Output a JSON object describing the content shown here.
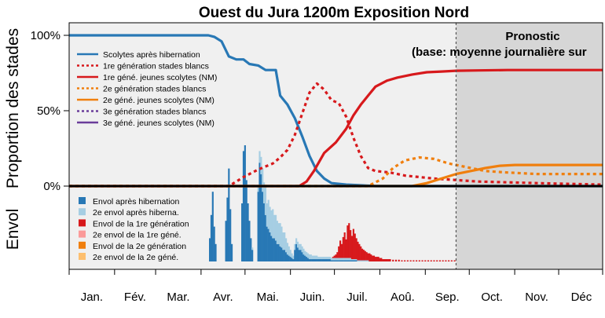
{
  "chart_data": {
    "type": "line",
    "title": "Ouest du Jura 1200m Exposition Nord",
    "ylabel_top": "Proportion des stades",
    "ylabel_bottom": "Envol",
    "yticks": [
      "100%",
      "50%",
      "0%"
    ],
    "ylim": [
      0,
      1.05
    ],
    "months": [
      "Jan.",
      "Fév.",
      "Mar.",
      "Avr.",
      "Mai.",
      "Juin.",
      "Juil.",
      "Aoû.",
      "Sep.",
      "Oct.",
      "Nov.",
      "Déc"
    ],
    "forecast": {
      "start_day": 265,
      "label_line1": "Pronostic",
      "label_line2": "(base: moyenne journalière sur"
    },
    "colors": {
      "panel_bg": "#f0f0f0",
      "forecast_bg": "#d6d6d6",
      "blue": "#2878b5",
      "red": "#d7191c",
      "orange": "#f07f0e",
      "purple": "#6a3d9a",
      "light_blue": "#a6cee3",
      "light_red": "#fb9a99",
      "light_orange": "#fdbf6f"
    },
    "legend_lines": [
      {
        "name": "Scolytes après hibernation",
        "color": "#2878b5",
        "dash": "solid"
      },
      {
        "name": "1re génération stades blancs",
        "color": "#d7191c",
        "dash": "dotted"
      },
      {
        "name": "1re géné. jeunes scolytes (NM)",
        "color": "#d7191c",
        "dash": "solid"
      },
      {
        "name": "2e génération stades blancs",
        "color": "#f07f0e",
        "dash": "dotted"
      },
      {
        "name": "2e géné. jeunes scolytes (NM)",
        "color": "#f07f0e",
        "dash": "solid"
      },
      {
        "name": "3e génération stades blancs",
        "color": "#6a3d9a",
        "dash": "dotted"
      },
      {
        "name": "3e géné. jeunes scolytes (NM)",
        "color": "#6a3d9a",
        "dash": "solid"
      }
    ],
    "legend_bars": [
      {
        "name": "Envol après hibernation",
        "color": "#2878b5"
      },
      {
        "name": "2e envol après hiberna.",
        "color": "#a6cee3"
      },
      {
        "name": "Envol de la 1re génération",
        "color": "#d7191c"
      },
      {
        "name": "2e envol de la 1re géné.",
        "color": "#fb9a99"
      },
      {
        "name": "Envol de la 2e génération",
        "color": "#f07f0e"
      },
      {
        "name": "2e envol de la 2e géné.",
        "color": "#fdbf6f"
      }
    ],
    "series": [
      {
        "name": "Scolytes après hibernation",
        "color": "#2878b5",
        "dash": "solid",
        "x": [
          1,
          96,
          100,
          105,
          110,
          115,
          120,
          124,
          130,
          135,
          142,
          145,
          150,
          155,
          160,
          165,
          170,
          175,
          180,
          190,
          200,
          210,
          365
        ],
        "y": [
          1.0,
          1.0,
          0.99,
          0.96,
          0.86,
          0.84,
          0.84,
          0.81,
          0.8,
          0.77,
          0.77,
          0.6,
          0.54,
          0.45,
          0.33,
          0.2,
          0.1,
          0.05,
          0.02,
          0.01,
          0.005,
          0.0,
          0.0
        ]
      },
      {
        "name": "1re génération stades blancs",
        "color": "#d7191c",
        "dash": "dotted",
        "x": [
          1,
          110,
          120,
          130,
          140,
          145,
          150,
          155,
          160,
          165,
          170,
          175,
          180,
          185,
          190,
          195,
          200,
          205,
          210,
          220,
          230,
          240,
          250,
          265,
          280,
          300,
          320,
          340,
          365
        ],
        "y": [
          0.0,
          0.0,
          0.06,
          0.11,
          0.15,
          0.19,
          0.24,
          0.34,
          0.48,
          0.62,
          0.68,
          0.64,
          0.57,
          0.55,
          0.46,
          0.32,
          0.2,
          0.12,
          0.1,
          0.09,
          0.07,
          0.06,
          0.05,
          0.04,
          0.03,
          0.025,
          0.02,
          0.015,
          0.01
        ]
      },
      {
        "name": "1re géné. jeunes scolytes (NM)",
        "color": "#d7191c",
        "dash": "solid",
        "x": [
          1,
          158,
          163,
          168,
          175,
          183,
          190,
          195,
          200,
          205,
          210,
          218,
          225,
          235,
          245,
          255,
          265,
          280,
          300,
          330,
          365
        ],
        "y": [
          0.0,
          0.0,
          0.03,
          0.1,
          0.22,
          0.29,
          0.38,
          0.47,
          0.54,
          0.6,
          0.66,
          0.7,
          0.72,
          0.74,
          0.755,
          0.76,
          0.765,
          0.767,
          0.77,
          0.77,
          0.77
        ]
      },
      {
        "name": "2e génération stades blancs",
        "color": "#f07f0e",
        "dash": "dotted",
        "x": [
          1,
          205,
          215,
          222,
          230,
          240,
          250,
          260,
          270,
          285,
          300,
          320,
          340,
          365
        ],
        "y": [
          0.0,
          0.0,
          0.05,
          0.12,
          0.17,
          0.19,
          0.18,
          0.15,
          0.13,
          0.1,
          0.09,
          0.08,
          0.08,
          0.08
        ]
      },
      {
        "name": "2e géné. jeunes scolytes (NM)",
        "color": "#f07f0e",
        "dash": "solid",
        "x": [
          1,
          235,
          245,
          255,
          265,
          275,
          285,
          295,
          305,
          320,
          340,
          365
        ],
        "y": [
          0.0,
          0.0,
          0.02,
          0.05,
          0.08,
          0.1,
          0.12,
          0.135,
          0.14,
          0.14,
          0.14,
          0.14
        ]
      }
    ],
    "flight_bars": [
      {
        "x": 97,
        "blue": 0.2,
        "light_blue": 0.0,
        "red": 0.0
      },
      {
        "x": 98,
        "blue": 0.4,
        "light_blue": 0.0,
        "red": 0.0
      },
      {
        "x": 99,
        "blue": 0.6,
        "light_blue": 0.0,
        "red": 0.0
      },
      {
        "x": 100,
        "blue": 0.3,
        "light_blue": 0.0,
        "red": 0.0
      },
      {
        "x": 101,
        "blue": 0.15,
        "light_blue": 0.0,
        "red": 0.0
      },
      {
        "x": 108,
        "blue": 0.35,
        "light_blue": 0.0,
        "red": 0.0
      },
      {
        "x": 109,
        "blue": 0.55,
        "light_blue": 0.0,
        "red": 0.0
      },
      {
        "x": 110,
        "blue": 0.8,
        "light_blue": 0.0,
        "red": 0.0
      },
      {
        "x": 111,
        "blue": 0.45,
        "light_blue": 0.0,
        "red": 0.0
      },
      {
        "x": 112,
        "blue": 0.15,
        "light_blue": 0.0,
        "red": 0.0
      },
      {
        "x": 119,
        "blue": 0.5,
        "light_blue": 0.0,
        "red": 0.0
      },
      {
        "x": 120,
        "blue": 0.95,
        "light_blue": 0.0,
        "red": 0.0
      },
      {
        "x": 121,
        "blue": 1.0,
        "light_blue": 0.0,
        "red": 0.0
      },
      {
        "x": 122,
        "blue": 0.7,
        "light_blue": 0.0,
        "red": 0.0
      },
      {
        "x": 123,
        "blue": 0.5,
        "light_blue": 0.0,
        "red": 0.0
      },
      {
        "x": 124,
        "blue": 0.35,
        "light_blue": 0.0,
        "red": 0.0
      },
      {
        "x": 125,
        "blue": 0.2,
        "light_blue": 0.0,
        "red": 0.0
      },
      {
        "x": 126,
        "blue": 0.1,
        "light_blue": 0.02,
        "red": 0.0
      },
      {
        "x": 130,
        "blue": 0.6,
        "light_blue": 0.05,
        "red": 0.0
      },
      {
        "x": 131,
        "blue": 0.85,
        "light_blue": 0.1,
        "red": 0.0
      },
      {
        "x": 132,
        "blue": 0.75,
        "light_blue": 0.15,
        "red": 0.0
      },
      {
        "x": 133,
        "blue": 0.6,
        "light_blue": 0.2,
        "red": 0.0
      },
      {
        "x": 134,
        "blue": 0.5,
        "light_blue": 0.18,
        "red": 0.0
      },
      {
        "x": 135,
        "blue": 0.4,
        "light_blue": 0.25,
        "red": 0.0
      },
      {
        "x": 136,
        "blue": 0.3,
        "light_blue": 0.2,
        "red": 0.0
      },
      {
        "x": 137,
        "blue": 0.28,
        "light_blue": 0.25,
        "red": 0.0
      },
      {
        "x": 138,
        "blue": 0.25,
        "light_blue": 0.22,
        "red": 0.0
      },
      {
        "x": 139,
        "blue": 0.22,
        "light_blue": 0.22,
        "red": 0.0
      },
      {
        "x": 140,
        "blue": 0.2,
        "light_blue": 0.25,
        "red": 0.0
      },
      {
        "x": 141,
        "blue": 0.2,
        "light_blue": 0.2,
        "red": 0.0
      },
      {
        "x": 142,
        "blue": 0.18,
        "light_blue": 0.22,
        "red": 0.0
      },
      {
        "x": 143,
        "blue": 0.15,
        "light_blue": 0.2,
        "red": 0.0
      },
      {
        "x": 144,
        "blue": 0.15,
        "light_blue": 0.18,
        "red": 0.0
      },
      {
        "x": 145,
        "blue": 0.13,
        "light_blue": 0.2,
        "red": 0.0
      },
      {
        "x": 146,
        "blue": 0.12,
        "light_blue": 0.18,
        "red": 0.0
      },
      {
        "x": 147,
        "blue": 0.1,
        "light_blue": 0.15,
        "red": 0.0
      },
      {
        "x": 148,
        "blue": 0.1,
        "light_blue": 0.15,
        "red": 0.0
      },
      {
        "x": 149,
        "blue": 0.08,
        "light_blue": 0.12,
        "red": 0.0
      },
      {
        "x": 150,
        "blue": 0.06,
        "light_blue": 0.1,
        "red": 0.0
      },
      {
        "x": 151,
        "blue": 0.05,
        "light_blue": 0.08,
        "red": 0.0
      },
      {
        "x": 152,
        "blue": 0.04,
        "light_blue": 0.06,
        "red": 0.0
      },
      {
        "x": 153,
        "blue": 0.03,
        "light_blue": 0.04,
        "red": 0.0
      },
      {
        "x": 154,
        "blue": 0.02,
        "light_blue": 0.03,
        "red": 0.0
      },
      {
        "x": 155,
        "blue": 0.1,
        "light_blue": 0.05,
        "red": 0.0
      },
      {
        "x": 156,
        "blue": 0.15,
        "light_blue": 0.05,
        "red": 0.0
      },
      {
        "x": 157,
        "blue": 0.12,
        "light_blue": 0.05,
        "red": 0.0
      },
      {
        "x": 158,
        "blue": 0.1,
        "light_blue": 0.05,
        "red": 0.0
      },
      {
        "x": 159,
        "blue": 0.1,
        "light_blue": 0.05,
        "red": 0.0
      },
      {
        "x": 160,
        "blue": 0.08,
        "light_blue": 0.05,
        "red": 0.0
      },
      {
        "x": 161,
        "blue": 0.06,
        "light_blue": 0.05,
        "red": 0.0
      },
      {
        "x": 162,
        "blue": 0.05,
        "light_blue": 0.04,
        "red": 0.0
      },
      {
        "x": 163,
        "blue": 0.04,
        "light_blue": 0.04,
        "red": 0.0
      },
      {
        "x": 164,
        "blue": 0.03,
        "light_blue": 0.04,
        "red": 0.0
      },
      {
        "x": 165,
        "blue": 0.02,
        "light_blue": 0.04,
        "red": 0.0
      },
      {
        "x": 166,
        "blue": 0.02,
        "light_blue": 0.04,
        "red": 0.0
      },
      {
        "x": 167,
        "blue": 0.02,
        "light_blue": 0.03,
        "red": 0.0
      },
      {
        "x": 168,
        "blue": 0.02,
        "light_blue": 0.03,
        "red": 0.0
      },
      {
        "x": 169,
        "blue": 0.02,
        "light_blue": 0.03,
        "red": 0.0
      },
      {
        "x": 170,
        "blue": 0.02,
        "light_blue": 0.03,
        "red": 0.0
      },
      {
        "x": 171,
        "blue": 0.02,
        "light_blue": 0.02,
        "red": 0.0
      },
      {
        "x": 172,
        "blue": 0.02,
        "light_blue": 0.02,
        "red": 0.0
      },
      {
        "x": 173,
        "blue": 0.02,
        "light_blue": 0.02,
        "red": 0.0
      },
      {
        "x": 174,
        "blue": 0.02,
        "light_blue": 0.02,
        "red": 0.0
      },
      {
        "x": 175,
        "blue": 0.02,
        "light_blue": 0.02,
        "red": 0.0
      },
      {
        "x": 176,
        "blue": 0.02,
        "light_blue": 0.02,
        "red": 0.0
      },
      {
        "x": 177,
        "blue": 0.02,
        "light_blue": 0.02,
        "red": 0.0
      },
      {
        "x": 178,
        "blue": 0.02,
        "light_blue": 0.02,
        "red": 0.0
      },
      {
        "x": 179,
        "blue": 0.02,
        "light_blue": 0.02,
        "red": 0.0
      },
      {
        "x": 180,
        "blue": 0.01,
        "light_blue": 0.02,
        "red": 0.0
      },
      {
        "x": 181,
        "blue": 0.01,
        "light_blue": 0.02,
        "red": 0.01
      },
      {
        "x": 182,
        "blue": 0.01,
        "light_blue": 0.02,
        "red": 0.02
      },
      {
        "x": 183,
        "blue": 0.01,
        "light_blue": 0.02,
        "red": 0.03
      },
      {
        "x": 184,
        "blue": 0.01,
        "light_blue": 0.02,
        "red": 0.05
      },
      {
        "x": 185,
        "blue": 0.01,
        "light_blue": 0.02,
        "red": 0.1
      },
      {
        "x": 186,
        "blue": 0.01,
        "light_blue": 0.02,
        "red": 0.15
      },
      {
        "x": 187,
        "blue": 0.01,
        "light_blue": 0.02,
        "red": 0.12
      },
      {
        "x": 188,
        "blue": 0.01,
        "light_blue": 0.02,
        "red": 0.18
      },
      {
        "x": 189,
        "blue": 0.01,
        "light_blue": 0.02,
        "red": 0.22
      },
      {
        "x": 190,
        "blue": 0.01,
        "light_blue": 0.02,
        "red": 0.16
      },
      {
        "x": 191,
        "blue": 0.01,
        "light_blue": 0.02,
        "red": 0.28
      },
      {
        "x": 192,
        "blue": 0.01,
        "light_blue": 0.02,
        "red": 0.3
      },
      {
        "x": 193,
        "blue": 0.01,
        "light_blue": 0.02,
        "red": 0.24
      },
      {
        "x": 194,
        "blue": 0.01,
        "light_blue": 0.01,
        "red": 0.2
      },
      {
        "x": 195,
        "blue": 0.01,
        "light_blue": 0.01,
        "red": 0.26
      },
      {
        "x": 196,
        "blue": 0.01,
        "light_blue": 0.01,
        "red": 0.22
      },
      {
        "x": 197,
        "blue": 0.01,
        "light_blue": 0.01,
        "red": 0.18
      },
      {
        "x": 198,
        "blue": 0.0,
        "light_blue": 0.01,
        "red": 0.16
      },
      {
        "x": 199,
        "blue": 0.0,
        "light_blue": 0.01,
        "red": 0.14
      },
      {
        "x": 200,
        "blue": 0.0,
        "light_blue": 0.01,
        "red": 0.12
      },
      {
        "x": 201,
        "blue": 0.0,
        "light_blue": 0.01,
        "red": 0.1
      },
      {
        "x": 202,
        "blue": 0.0,
        "light_blue": 0.01,
        "red": 0.09
      },
      {
        "x": 203,
        "blue": 0.0,
        "light_blue": 0.01,
        "red": 0.08
      },
      {
        "x": 204,
        "blue": 0.0,
        "light_blue": 0.01,
        "red": 0.07
      },
      {
        "x": 205,
        "blue": 0.0,
        "light_blue": 0.01,
        "red": 0.06
      },
      {
        "x": 206,
        "blue": 0.0,
        "light_blue": 0.0,
        "red": 0.07
      },
      {
        "x": 207,
        "blue": 0.0,
        "light_blue": 0.0,
        "red": 0.06
      },
      {
        "x": 208,
        "blue": 0.0,
        "light_blue": 0.0,
        "red": 0.05
      },
      {
        "x": 209,
        "blue": 0.0,
        "light_blue": 0.0,
        "red": 0.05
      },
      {
        "x": 210,
        "blue": 0.0,
        "light_blue": 0.0,
        "red": 0.04
      },
      {
        "x": 211,
        "blue": 0.0,
        "light_blue": 0.0,
        "red": 0.04
      },
      {
        "x": 212,
        "blue": 0.0,
        "light_blue": 0.0,
        "red": 0.04
      },
      {
        "x": 213,
        "blue": 0.0,
        "light_blue": 0.0,
        "red": 0.03
      },
      {
        "x": 214,
        "blue": 0.0,
        "light_blue": 0.0,
        "red": 0.03
      },
      {
        "x": 215,
        "blue": 0.0,
        "light_blue": 0.0,
        "red": 0.02
      },
      {
        "x": 216,
        "blue": 0.0,
        "light_blue": 0.0,
        "red": 0.02
      },
      {
        "x": 217,
        "blue": 0.0,
        "light_blue": 0.0,
        "red": 0.02
      },
      {
        "x": 218,
        "blue": 0.0,
        "light_blue": 0.0,
        "red": 0.02
      },
      {
        "x": 219,
        "blue": 0.0,
        "light_blue": 0.0,
        "red": 0.02
      },
      {
        "x": 220,
        "blue": 0.0,
        "light_blue": 0.0,
        "red": 0.02
      },
      {
        "x": 222,
        "blue": 0.0,
        "light_blue": 0.0,
        "red": 0.015
      },
      {
        "x": 224,
        "blue": 0.0,
        "light_blue": 0.0,
        "red": 0.015
      },
      {
        "x": 226,
        "blue": 0.0,
        "light_blue": 0.0,
        "red": 0.015
      },
      {
        "x": 228,
        "blue": 0.0,
        "light_blue": 0.0,
        "red": 0.01
      },
      {
        "x": 230,
        "blue": 0.0,
        "light_blue": 0.0,
        "red": 0.01
      },
      {
        "x": 232,
        "blue": 0.0,
        "light_blue": 0.0,
        "red": 0.01
      },
      {
        "x": 234,
        "blue": 0.0,
        "light_blue": 0.0,
        "red": 0.01
      },
      {
        "x": 236,
        "blue": 0.0,
        "light_blue": 0.0,
        "red": 0.01
      },
      {
        "x": 238,
        "blue": 0.0,
        "light_blue": 0.0,
        "red": 0.01
      },
      {
        "x": 240,
        "blue": 0.0,
        "light_blue": 0.0,
        "red": 0.01
      },
      {
        "x": 242,
        "blue": 0.0,
        "light_blue": 0.0,
        "red": 0.01
      },
      {
        "x": 244,
        "blue": 0.0,
        "light_blue": 0.0,
        "red": 0.01
      },
      {
        "x": 246,
        "blue": 0.0,
        "light_blue": 0.0,
        "red": 0.01
      },
      {
        "x": 248,
        "blue": 0.0,
        "light_blue": 0.0,
        "red": 0.01
      },
      {
        "x": 250,
        "blue": 0.0,
        "light_blue": 0.0,
        "red": 0.01
      },
      {
        "x": 252,
        "blue": 0.0,
        "light_blue": 0.0,
        "red": 0.01
      },
      {
        "x": 254,
        "blue": 0.0,
        "light_blue": 0.0,
        "red": 0.01
      },
      {
        "x": 256,
        "blue": 0.0,
        "light_blue": 0.0,
        "red": 0.01
      },
      {
        "x": 258,
        "blue": 0.0,
        "light_blue": 0.0,
        "red": 0.01
      },
      {
        "x": 260,
        "blue": 0.0,
        "light_blue": 0.0,
        "red": 0.01
      },
      {
        "x": 262,
        "blue": 0.0,
        "light_blue": 0.0,
        "red": 0.01
      },
      {
        "x": 264,
        "blue": 0.0,
        "light_blue": 0.0,
        "red": 0.01
      }
    ]
  }
}
